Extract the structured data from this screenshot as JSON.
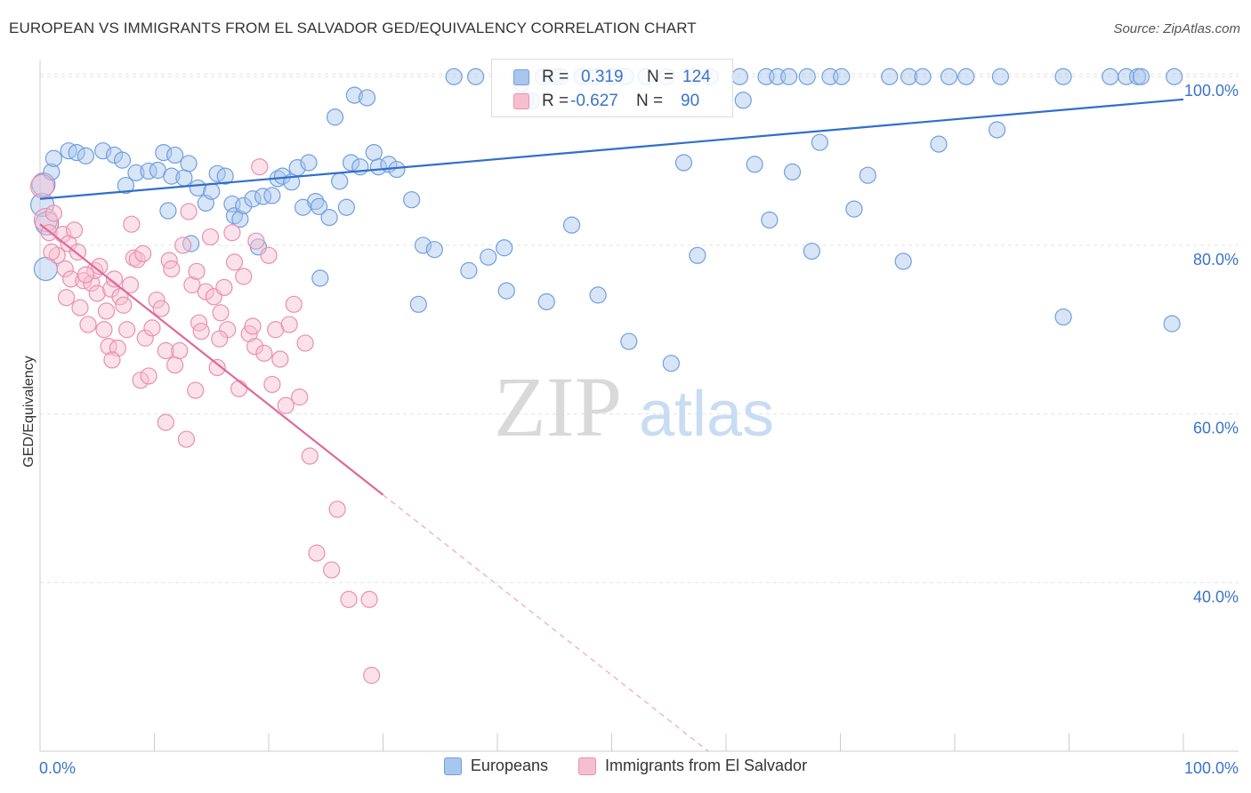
{
  "header": {
    "title": "EUROPEAN VS IMMIGRANTS FROM EL SALVADOR GED/EQUIVALENCY CORRELATION CHART",
    "source": "Source: ZipAtlas.com"
  },
  "watermark": {
    "zip": "ZIP",
    "atlas": "atlas"
  },
  "legend_stats": [
    {
      "r_label": "R =",
      "r_value": "0.319",
      "n_label": "N =",
      "n_value": "124"
    },
    {
      "r_label": "R =",
      "r_value": "-0.627",
      "n_label": "N =",
      "n_value": "90"
    }
  ],
  "colors": {
    "blue_fill": "#a9c6ee",
    "blue_stroke": "#6f9fe0",
    "blue_line": "#2f6fcc",
    "pink_fill": "#f6bfd0",
    "pink_stroke": "#ea8fae",
    "pink_line": "#e0689a",
    "tick_label": "#3b74c9",
    "grid": "#e2e2e2"
  },
  "chart_data": {
    "type": "scatter",
    "title": "EUROPEAN VS IMMIGRANTS FROM EL SALVADOR GED/EQUIVALENCY CORRELATION CHART",
    "xlabel": "",
    "ylabel": "GED/Equivalency",
    "xlim": [
      0,
      100
    ],
    "ylim": [
      20,
      101.5
    ],
    "x_tick_labels": [
      "0.0%",
      "100.0%"
    ],
    "y_ticks": [
      40,
      60,
      80,
      100
    ],
    "y_tick_labels": [
      "40.0%",
      "60.0%",
      "80.0%",
      "100.0%"
    ],
    "grid": "horizontal dashed",
    "legend": "bottom-center",
    "series": [
      {
        "name": "Europeans",
        "color": "blue",
        "trend": {
          "x": [
            0,
            100
          ],
          "y": [
            85.5,
            97.3
          ],
          "dashed_after": null
        },
        "points": [
          [
            0.2,
            84.8
          ],
          [
            0.3,
            87.2
          ],
          [
            0.5,
            77.2
          ],
          [
            0.6,
            82.6
          ],
          [
            1.0,
            88.7
          ],
          [
            1.2,
            90.3
          ],
          [
            2.5,
            91.2
          ],
          [
            3.2,
            91.0
          ],
          [
            4.0,
            90.6
          ],
          [
            5.5,
            91.2
          ],
          [
            6.5,
            90.7
          ],
          [
            7.2,
            90.1
          ],
          [
            7.5,
            87.1
          ],
          [
            8.4,
            88.6
          ],
          [
            9.5,
            88.8
          ],
          [
            10.3,
            88.9
          ],
          [
            10.8,
            91.0
          ],
          [
            11.2,
            84.1
          ],
          [
            11.5,
            88.2
          ],
          [
            11.8,
            90.7
          ],
          [
            12.6,
            88.0
          ],
          [
            13.0,
            89.7
          ],
          [
            13.2,
            80.2
          ],
          [
            13.8,
            86.8
          ],
          [
            14.5,
            85.0
          ],
          [
            15.0,
            86.4
          ],
          [
            15.5,
            88.5
          ],
          [
            16.2,
            88.2
          ],
          [
            16.8,
            84.9
          ],
          [
            17.0,
            83.5
          ],
          [
            17.5,
            83.1
          ],
          [
            17.8,
            84.7
          ],
          [
            18.6,
            85.5
          ],
          [
            19.1,
            79.8
          ],
          [
            19.5,
            85.8
          ],
          [
            20.3,
            85.9
          ],
          [
            20.8,
            87.9
          ],
          [
            21.2,
            88.2
          ],
          [
            22.0,
            87.5
          ],
          [
            22.5,
            89.2
          ],
          [
            23.0,
            84.5
          ],
          [
            23.5,
            89.8
          ],
          [
            24.1,
            85.2
          ],
          [
            24.4,
            84.6
          ],
          [
            24.5,
            76.1
          ],
          [
            25.3,
            83.3
          ],
          [
            25.8,
            95.2
          ],
          [
            26.2,
            87.6
          ],
          [
            26.8,
            84.5
          ],
          [
            27.2,
            89.8
          ],
          [
            27.5,
            97.8
          ],
          [
            28.0,
            89.3
          ],
          [
            28.6,
            97.5
          ],
          [
            29.2,
            91.0
          ],
          [
            29.6,
            89.3
          ],
          [
            30.5,
            89.6
          ],
          [
            31.2,
            89.0
          ],
          [
            32.5,
            85.4
          ],
          [
            33.1,
            73.0
          ],
          [
            33.5,
            80.0
          ],
          [
            34.5,
            79.5
          ],
          [
            36.2,
            100.0
          ],
          [
            37.5,
            77.0
          ],
          [
            38.1,
            100.0
          ],
          [
            39.2,
            78.6
          ],
          [
            40.6,
            79.7
          ],
          [
            40.8,
            74.6
          ],
          [
            42.1,
            99.2
          ],
          [
            42.5,
            97.2
          ],
          [
            43.0,
            97.1
          ],
          [
            44.0,
            100.0
          ],
          [
            44.3,
            73.3
          ],
          [
            45.1,
            100.0
          ],
          [
            45.5,
            100.0
          ],
          [
            46.5,
            82.4
          ],
          [
            47.4,
            100.0
          ],
          [
            48.5,
            100.0
          ],
          [
            48.8,
            74.1
          ],
          [
            50.0,
            100.0
          ],
          [
            51.2,
            100.0
          ],
          [
            51.5,
            68.6
          ],
          [
            53.0,
            100.0
          ],
          [
            54.8,
            100.0
          ],
          [
            55.2,
            66.0
          ],
          [
            56.3,
            89.8
          ],
          [
            57.2,
            100.0
          ],
          [
            57.5,
            78.8
          ],
          [
            58.6,
            100.0
          ],
          [
            61.2,
            100.0
          ],
          [
            61.5,
            97.2
          ],
          [
            62.5,
            89.6
          ],
          [
            63.5,
            100.0
          ],
          [
            63.8,
            83.0
          ],
          [
            64.5,
            100.0
          ],
          [
            65.5,
            100.0
          ],
          [
            65.8,
            88.7
          ],
          [
            67.1,
            100.0
          ],
          [
            67.5,
            79.3
          ],
          [
            68.2,
            92.2
          ],
          [
            69.1,
            100.0
          ],
          [
            70.1,
            100.0
          ],
          [
            71.2,
            84.3
          ],
          [
            72.4,
            88.3
          ],
          [
            74.3,
            100.0
          ],
          [
            75.5,
            78.1
          ],
          [
            76.0,
            100.0
          ],
          [
            77.2,
            100.0
          ],
          [
            78.6,
            92.0
          ],
          [
            79.5,
            100.0
          ],
          [
            81.0,
            100.0
          ],
          [
            83.7,
            93.7
          ],
          [
            84.0,
            100.0
          ],
          [
            89.5,
            100.0
          ],
          [
            89.5,
            71.5
          ],
          [
            93.6,
            100.0
          ],
          [
            95.0,
            100.0
          ],
          [
            96.0,
            100.0
          ],
          [
            96.3,
            100.0
          ],
          [
            99.0,
            70.7
          ],
          [
            99.2,
            100.0
          ]
        ]
      },
      {
        "name": "Immigrants from El Salvador",
        "color": "pink",
        "trend": {
          "x": [
            0,
            30,
            100
          ],
          "y": [
            82.5,
            50.4,
            -24.4
          ],
          "dashed_after": 30
        },
        "points": [
          [
            0.2,
            87.0
          ],
          [
            0.5,
            83.0
          ],
          [
            0.8,
            81.5
          ],
          [
            1.5,
            78.8
          ],
          [
            2.0,
            81.3
          ],
          [
            2.2,
            77.2
          ],
          [
            2.3,
            73.8
          ],
          [
            2.5,
            80.2
          ],
          [
            2.7,
            76.0
          ],
          [
            3.0,
            81.8
          ],
          [
            3.3,
            79.2
          ],
          [
            3.5,
            72.6
          ],
          [
            3.8,
            75.8
          ],
          [
            4.2,
            70.6
          ],
          [
            4.5,
            75.5
          ],
          [
            4.8,
            77.0
          ],
          [
            5.0,
            74.3
          ],
          [
            5.2,
            77.5
          ],
          [
            5.6,
            70.0
          ],
          [
            5.8,
            72.2
          ],
          [
            6.0,
            68.0
          ],
          [
            6.2,
            74.8
          ],
          [
            6.5,
            76.0
          ],
          [
            6.8,
            67.8
          ],
          [
            7.0,
            73.9
          ],
          [
            7.3,
            72.9
          ],
          [
            7.6,
            70.0
          ],
          [
            7.9,
            75.3
          ],
          [
            8.0,
            82.5
          ],
          [
            8.2,
            78.5
          ],
          [
            8.5,
            78.3
          ],
          [
            8.8,
            64.0
          ],
          [
            9.0,
            79.0
          ],
          [
            9.2,
            69.0
          ],
          [
            9.5,
            64.5
          ],
          [
            9.8,
            70.2
          ],
          [
            10.2,
            73.5
          ],
          [
            10.6,
            72.5
          ],
          [
            11.0,
            67.5
          ],
          [
            11.3,
            78.2
          ],
          [
            11.5,
            77.2
          ],
          [
            11.8,
            65.8
          ],
          [
            12.2,
            67.5
          ],
          [
            12.5,
            80.0
          ],
          [
            13.0,
            84.0
          ],
          [
            13.3,
            75.3
          ],
          [
            13.6,
            62.8
          ],
          [
            13.9,
            70.8
          ],
          [
            14.1,
            69.8
          ],
          [
            14.5,
            74.5
          ],
          [
            14.9,
            81.0
          ],
          [
            15.2,
            73.9
          ],
          [
            15.5,
            65.5
          ],
          [
            15.8,
            72.0
          ],
          [
            16.1,
            75.0
          ],
          [
            16.4,
            70.0
          ],
          [
            16.8,
            81.5
          ],
          [
            17.0,
            78.0
          ],
          [
            17.4,
            63.0
          ],
          [
            17.8,
            76.3
          ],
          [
            18.3,
            69.5
          ],
          [
            18.6,
            70.4
          ],
          [
            18.8,
            68.0
          ],
          [
            19.2,
            89.3
          ],
          [
            19.6,
            67.2
          ],
          [
            20.0,
            78.8
          ],
          [
            20.3,
            63.5
          ],
          [
            20.6,
            70.0
          ],
          [
            21.0,
            66.5
          ],
          [
            21.5,
            61.0
          ],
          [
            21.8,
            70.6
          ],
          [
            22.2,
            73.0
          ],
          [
            22.7,
            62.0
          ],
          [
            23.2,
            68.4
          ],
          [
            23.6,
            55.0
          ],
          [
            24.2,
            43.5
          ],
          [
            25.5,
            41.5
          ],
          [
            26.0,
            48.7
          ],
          [
            27.0,
            38.0
          ],
          [
            28.8,
            38.0
          ],
          [
            29.0,
            29.0
          ],
          [
            11.0,
            59.0
          ],
          [
            12.8,
            57.0
          ],
          [
            6.3,
            66.4
          ],
          [
            4.0,
            76.5
          ],
          [
            18.9,
            80.5
          ],
          [
            1.2,
            83.8
          ],
          [
            1.0,
            79.2
          ],
          [
            13.7,
            76.9
          ],
          [
            15.7,
            68.9
          ]
        ]
      }
    ]
  },
  "bottom_legend": [
    {
      "label": "Europeans"
    },
    {
      "label": "Immigrants from El Salvador"
    }
  ]
}
